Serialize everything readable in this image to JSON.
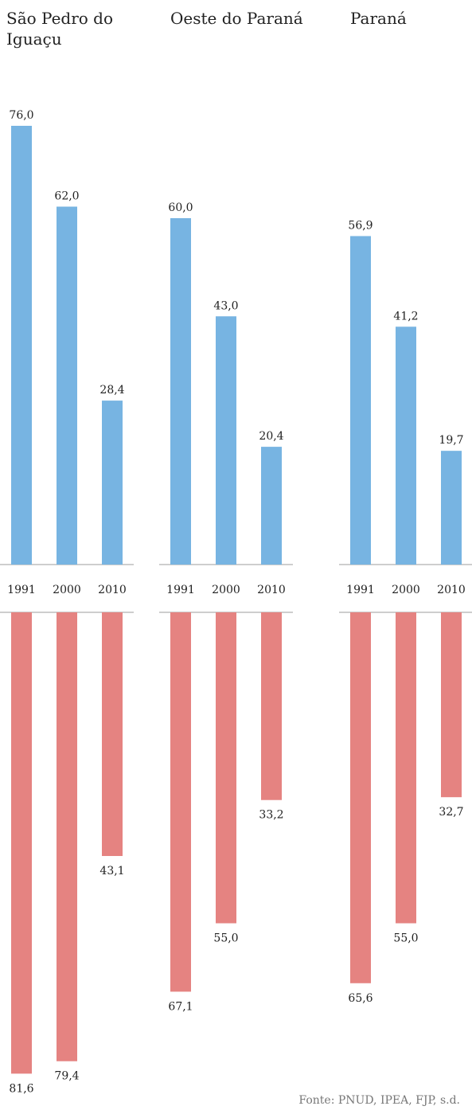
{
  "chart_data": {
    "type": "bar",
    "layout": "diverging small multiples (upper series above axis, lower series below axis)",
    "categories": [
      "1991",
      "2000",
      "2010"
    ],
    "panels": [
      {
        "title": "São Pedro do Iguaçu",
        "top": [
          76.0,
          62.0,
          28.4
        ],
        "bottom": [
          81.6,
          79.4,
          43.1
        ],
        "top_labels": [
          "76,0",
          "62,0",
          "28,4"
        ],
        "bottom_labels": [
          "81,6",
          "79,4",
          "43,1"
        ]
      },
      {
        "title": "Oeste do Paraná",
        "top": [
          60.0,
          43.0,
          20.4
        ],
        "bottom": [
          67.1,
          55.0,
          33.2
        ],
        "top_labels": [
          "60,0",
          "43,0",
          "20,4"
        ],
        "bottom_labels": [
          "67,1",
          "55,0",
          "33,2"
        ]
      },
      {
        "title": "Paraná",
        "top": [
          56.9,
          41.2,
          19.7
        ],
        "bottom": [
          65.6,
          55.0,
          32.7
        ],
        "top_labels": [
          "56,9",
          "41,2",
          "19,7"
        ],
        "bottom_labels": [
          "65,6",
          "55,0",
          "32,7"
        ]
      }
    ],
    "colors": {
      "top": "#77b4e2",
      "bottom": "#e58381",
      "axis": "#9e9e9e"
    },
    "legend": "none",
    "grid": false,
    "source": "Fonte: PNUD, IPEA, FJP, s.d."
  }
}
